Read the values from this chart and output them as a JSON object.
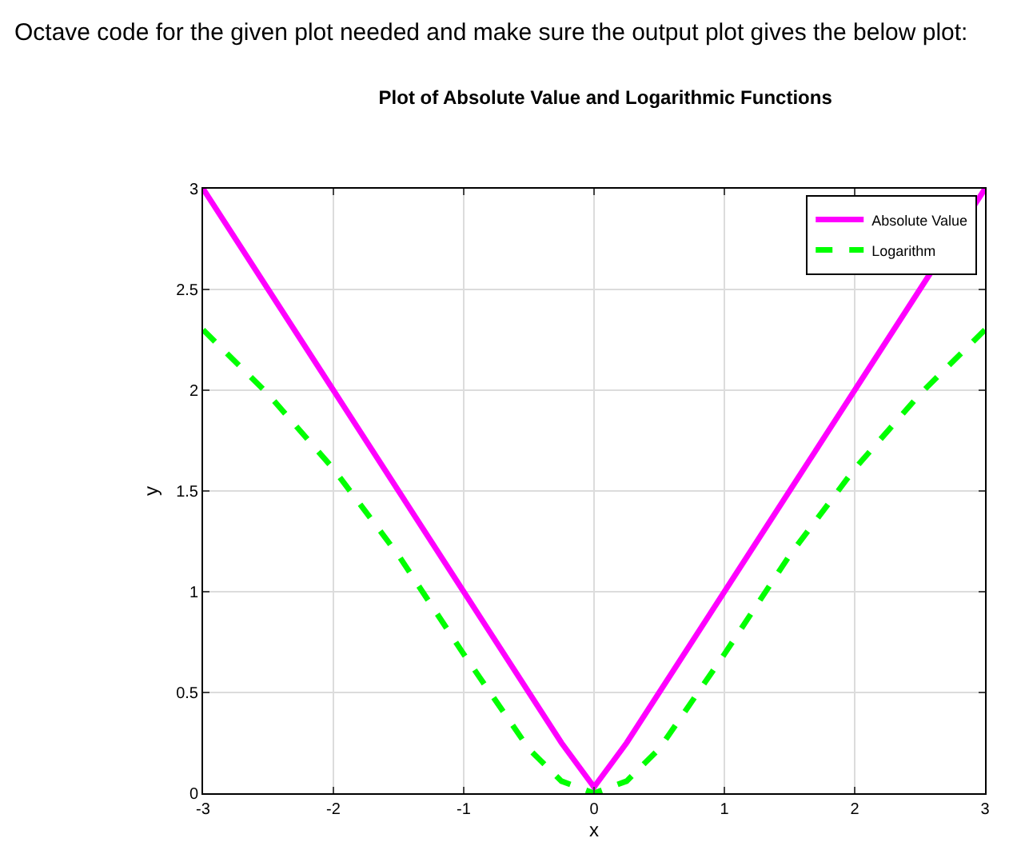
{
  "chart_data": {
    "type": "line",
    "title": "Plot of Absolute Value and Logarithmic Functions",
    "xlabel": "x",
    "ylabel": "y",
    "annotations": [
      "Octave code for the given plot needed and make sure the output plot gives the below plot:"
    ],
    "x": [
      -3,
      -2.5,
      -2,
      -1.5,
      -1,
      -0.5,
      -0.25,
      0,
      0.25,
      0.5,
      1,
      1.5,
      2,
      2.5,
      3
    ],
    "series": [
      {
        "name": "Absolute Value",
        "color": "#ff00ff",
        "line_style": "solid",
        "values": [
          3,
          2.5,
          2,
          1.5,
          1,
          0.5,
          0.25,
          0.03,
          0.25,
          0.5,
          1,
          1.5,
          2,
          2.5,
          3
        ]
      },
      {
        "name": "Logarithm",
        "color": "#00ff00",
        "line_style": "dashed",
        "values": [
          2.3,
          1.98,
          1.61,
          1.18,
          0.69,
          0.22,
          0.06,
          0,
          0.06,
          0.22,
          0.69,
          1.18,
          1.61,
          1.98,
          2.3
        ]
      }
    ],
    "xlim": [
      -3,
      3
    ],
    "xticks": [
      -3,
      -2,
      -1,
      0,
      1,
      2,
      3
    ],
    "ylim": [
      0,
      3
    ],
    "yticks": [
      0,
      0.5,
      1,
      1.5,
      2,
      2.5,
      3
    ],
    "grid": true,
    "legend": "top right",
    "marker": "none"
  }
}
